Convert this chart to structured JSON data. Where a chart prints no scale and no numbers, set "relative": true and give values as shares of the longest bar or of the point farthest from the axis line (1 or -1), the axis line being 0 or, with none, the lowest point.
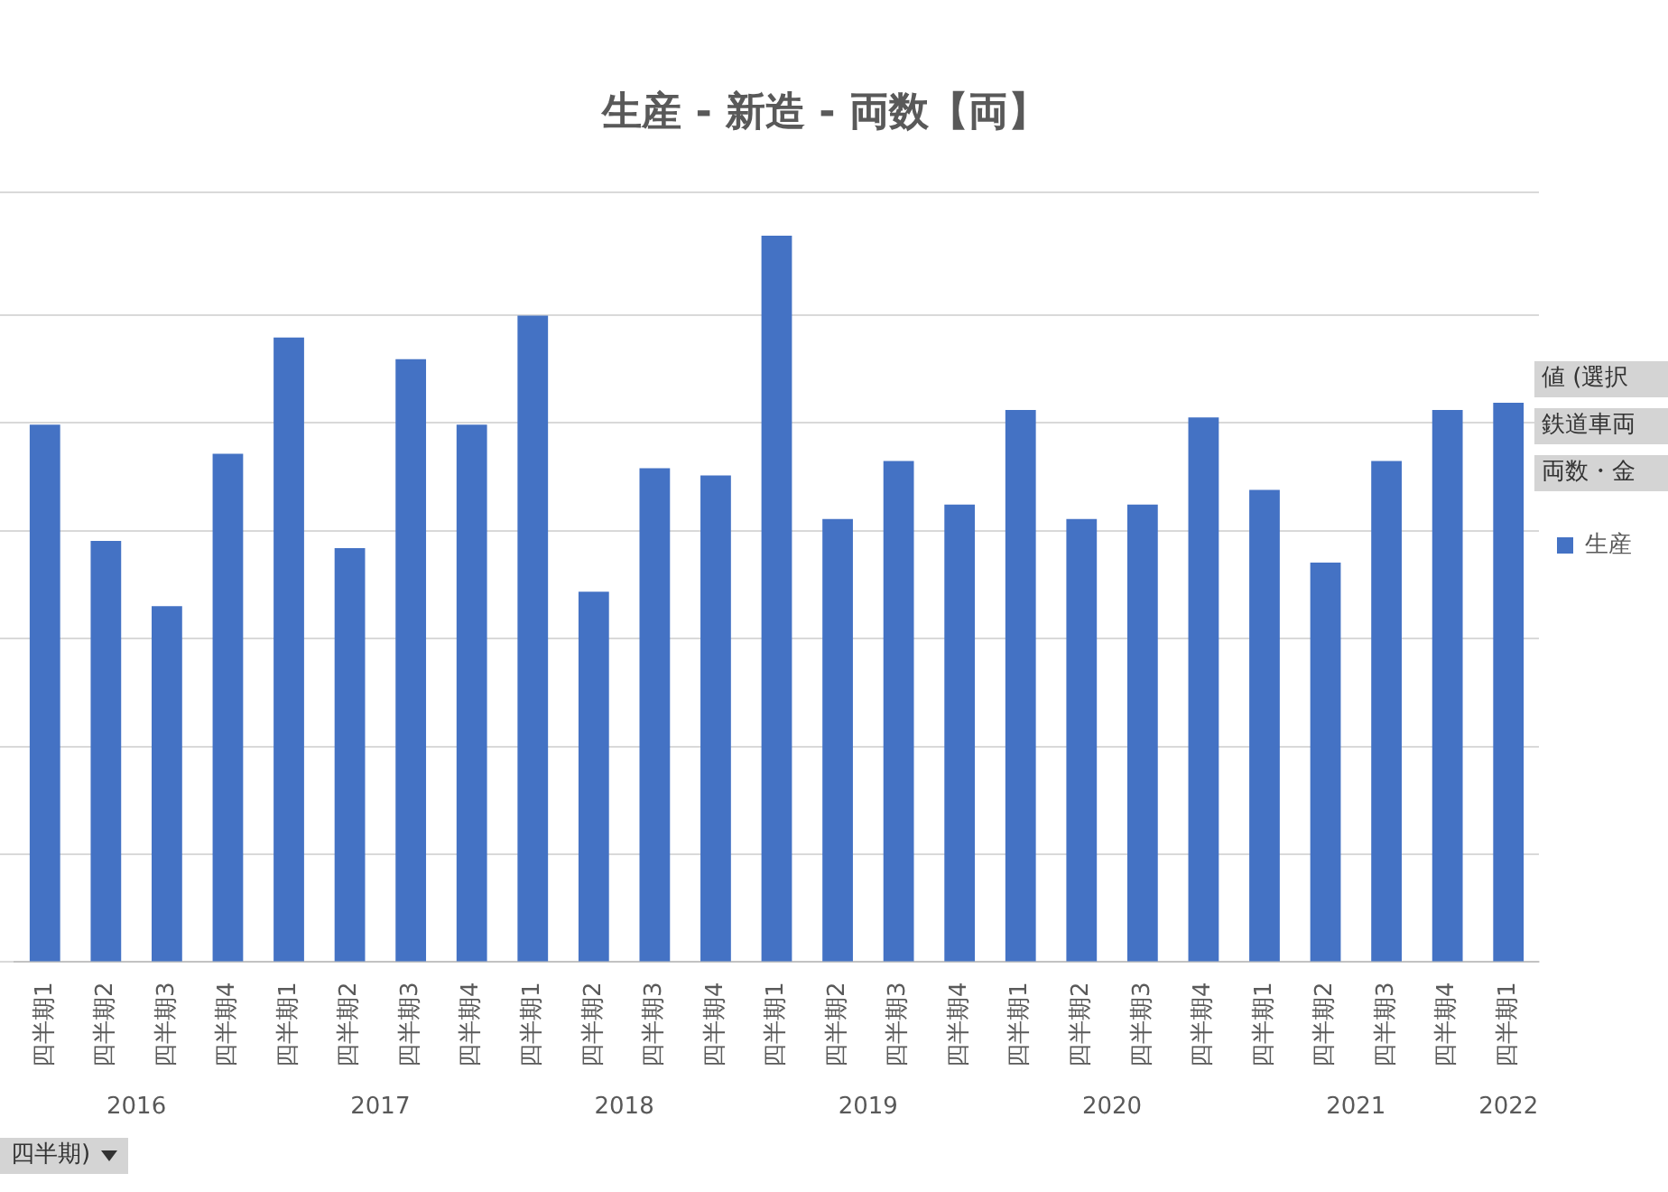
{
  "chart_data": {
    "type": "bar",
    "title": "生産 - 新造 - 両数【両】",
    "relative": true,
    "grid": "y",
    "legend": "right",
    "categories": [
      "四半期1",
      "四半期2",
      "四半期3",
      "四半期4",
      "四半期1",
      "四半期2",
      "四半期3",
      "四半期4",
      "四半期1",
      "四半期2",
      "四半期3",
      "四半期4",
      "四半期1",
      "四半期2",
      "四半期3",
      "四半期4",
      "四半期1",
      "四半期2",
      "四半期3",
      "四半期4",
      "四半期1",
      "四半期2",
      "四半期3",
      "四半期4",
      "四半期1"
    ],
    "series": [
      {
        "name": "生産",
        "color": "#4472c4",
        "values": [
          0.74,
          0.58,
          0.49,
          0.7,
          0.86,
          0.57,
          0.83,
          0.74,
          0.89,
          0.51,
          0.68,
          0.67,
          1,
          0.61,
          0.69,
          0.63,
          0.76,
          0.61,
          0.63,
          0.75,
          0.65,
          0.55,
          0.69,
          0.76,
          0.77
        ]
      }
    ],
    "annotations": [
      "2016",
      "2017",
      "2018",
      "2019",
      "2020",
      "2021",
      "2022",
      "値 (選択",
      "鉄道車両",
      "両数・金",
      "四半期)"
    ]
  }
}
